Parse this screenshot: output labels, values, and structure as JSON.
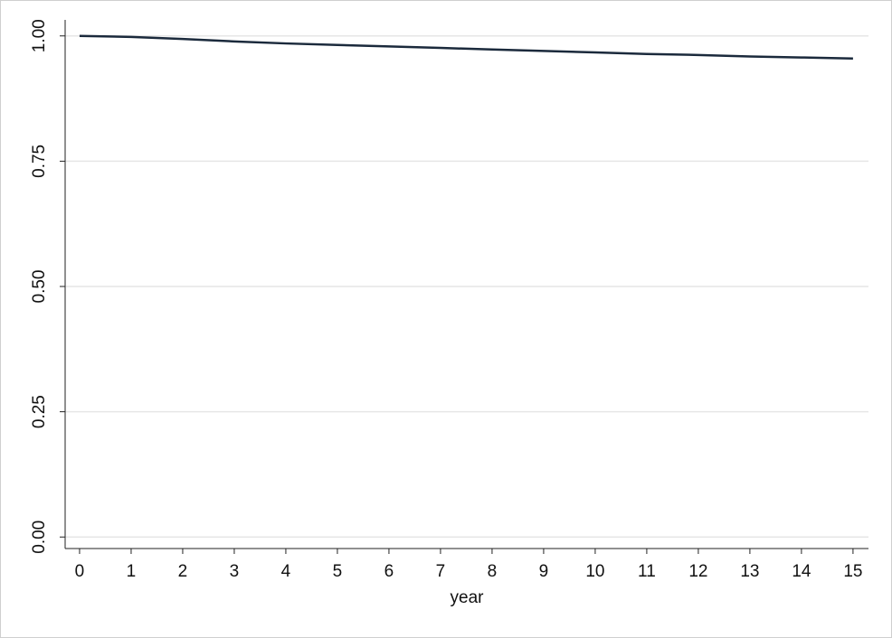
{
  "chart_data": {
    "type": "line",
    "x_label": "year",
    "x": [
      0,
      1,
      2,
      3,
      4,
      5,
      6,
      7,
      8,
      9,
      10,
      11,
      12,
      13,
      14,
      15
    ],
    "values": [
      1.0,
      0.998,
      0.994,
      0.989,
      0.985,
      0.982,
      0.979,
      0.976,
      0.973,
      0.97,
      0.967,
      0.964,
      0.962,
      0.959,
      0.957,
      0.955
    ],
    "color": "#1b2a3c",
    "xlim": [
      -0.28,
      15.3
    ],
    "xticks": [
      0,
      1,
      2,
      3,
      4,
      5,
      6,
      7,
      8,
      9,
      10,
      11,
      12,
      13,
      14,
      15
    ],
    "ylim": [
      -0.023,
      1.032
    ],
    "yticks": [
      {
        "value": 0,
        "label": "0.00"
      },
      {
        "value": 0.25,
        "label": "0.25"
      },
      {
        "value": 0.5,
        "label": "0.50"
      },
      {
        "value": 0.75,
        "label": "0.75"
      },
      {
        "value": 1,
        "label": "1.00"
      }
    ],
    "grid": true
  }
}
